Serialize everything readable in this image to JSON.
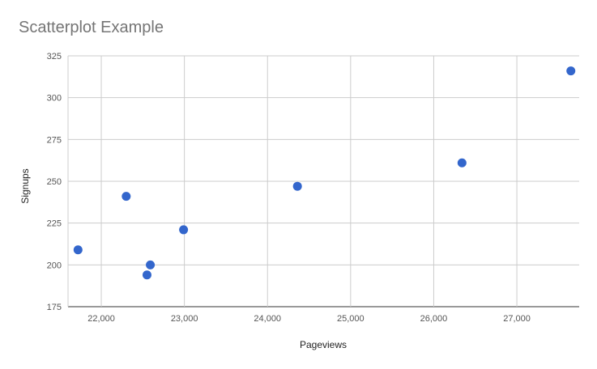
{
  "chart_data": {
    "type": "scatter",
    "title": "Scatterplot Example",
    "xlabel": "Pageviews",
    "ylabel": "Signups",
    "xlim": [
      21600,
      27750
    ],
    "ylim": [
      175,
      325
    ],
    "xticks": [
      22000,
      23000,
      24000,
      25000,
      26000,
      27000
    ],
    "xtick_labels": [
      "22,000",
      "23,000",
      "24,000",
      "25,000",
      "26,000",
      "27,000"
    ],
    "yticks": [
      175,
      200,
      225,
      250,
      275,
      300,
      325
    ],
    "ytick_labels": [
      "175",
      "200",
      "225",
      "250",
      "275",
      "300",
      "325"
    ],
    "grid": true,
    "legend": "none",
    "point_color": "#3366cc",
    "series": [
      {
        "points": [
          {
            "x": 21720,
            "y": 209
          },
          {
            "x": 22300,
            "y": 241
          },
          {
            "x": 22550,
            "y": 194
          },
          {
            "x": 22590,
            "y": 200
          },
          {
            "x": 22990,
            "y": 221
          },
          {
            "x": 24360,
            "y": 247
          },
          {
            "x": 26340,
            "y": 261
          },
          {
            "x": 27650,
            "y": 316
          }
        ]
      }
    ]
  }
}
